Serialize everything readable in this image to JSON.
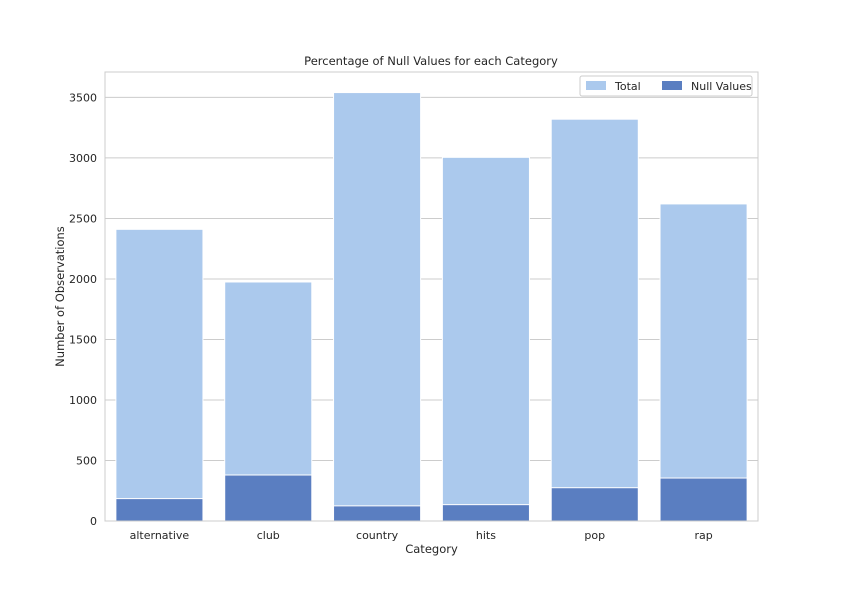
{
  "chart_data": {
    "type": "bar",
    "title": "Percentage of Null Values for each Category",
    "xlabel": "Category",
    "ylabel": "Number of Observations",
    "categories": [
      "alternative",
      "club",
      "country",
      "hits",
      "pop",
      "rap"
    ],
    "series": [
      {
        "name": "Total",
        "color": "#abc9ed",
        "values": [
          2410,
          1975,
          3540,
          3005,
          3320,
          2620
        ]
      },
      {
        "name": "Null Values",
        "color": "#5a7ec1",
        "values": [
          185,
          380,
          125,
          135,
          275,
          355
        ]
      }
    ],
    "ylim": [
      0,
      3710
    ],
    "yticks": [
      0,
      500,
      1000,
      1500,
      2000,
      2500,
      3000,
      3500
    ],
    "grid": "y",
    "legend_position": "top-right",
    "legend_layout": "horizontal"
  }
}
